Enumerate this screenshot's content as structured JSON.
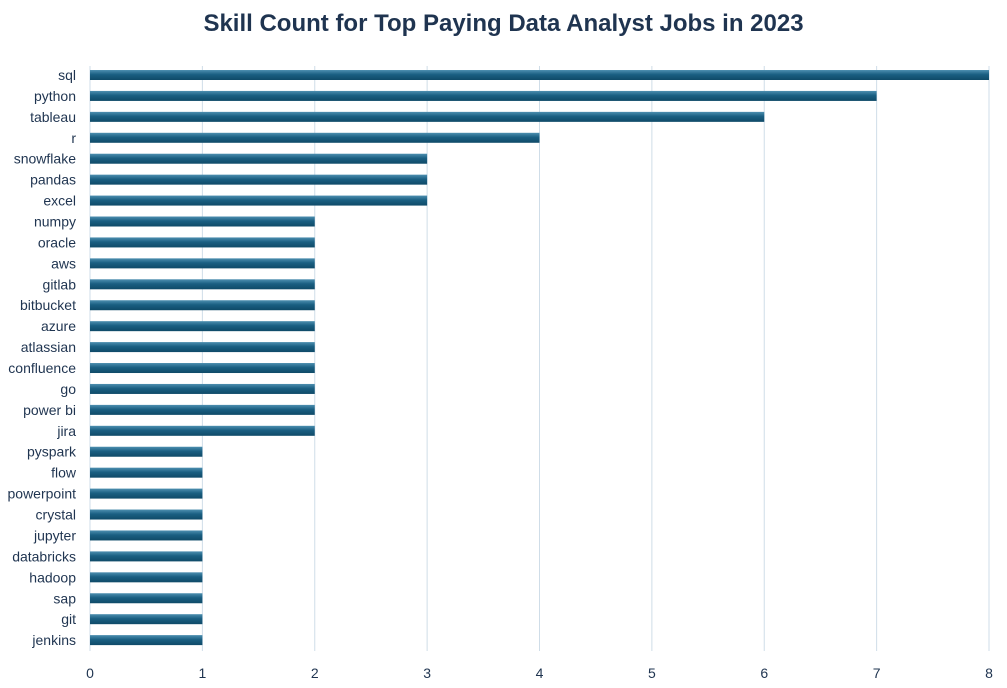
{
  "chart_data": {
    "type": "bar",
    "orientation": "horizontal",
    "title": "Skill Count for Top Paying Data Analyst Jobs in 2023",
    "xlabel": "",
    "ylabel": "",
    "categories": [
      "sql",
      "python",
      "tableau",
      "r",
      "snowflake",
      "pandas",
      "excel",
      "numpy",
      "oracle",
      "aws",
      "gitlab",
      "bitbucket",
      "azure",
      "atlassian",
      "confluence",
      "go",
      "power bi",
      "jira",
      "pyspark",
      "flow",
      "powerpoint",
      "crystal",
      "jupyter",
      "databricks",
      "hadoop",
      "sap",
      "git",
      "jenkins"
    ],
    "values": [
      8,
      7,
      6,
      4,
      3,
      3,
      3,
      2,
      2,
      2,
      2,
      2,
      2,
      2,
      2,
      2,
      2,
      2,
      1,
      1,
      1,
      1,
      1,
      1,
      1,
      1,
      1,
      1
    ],
    "xlim": [
      0,
      8
    ],
    "xticks": [
      "0",
      "1",
      "2",
      "3",
      "4",
      "5",
      "6",
      "7",
      "8"
    ],
    "grid": "vertical",
    "legend": "none",
    "colors": {
      "bar": "#1a5f82",
      "bar_highlight": "#4d8fb0",
      "grid": "#cfdde8",
      "text": "#1f3450"
    }
  }
}
